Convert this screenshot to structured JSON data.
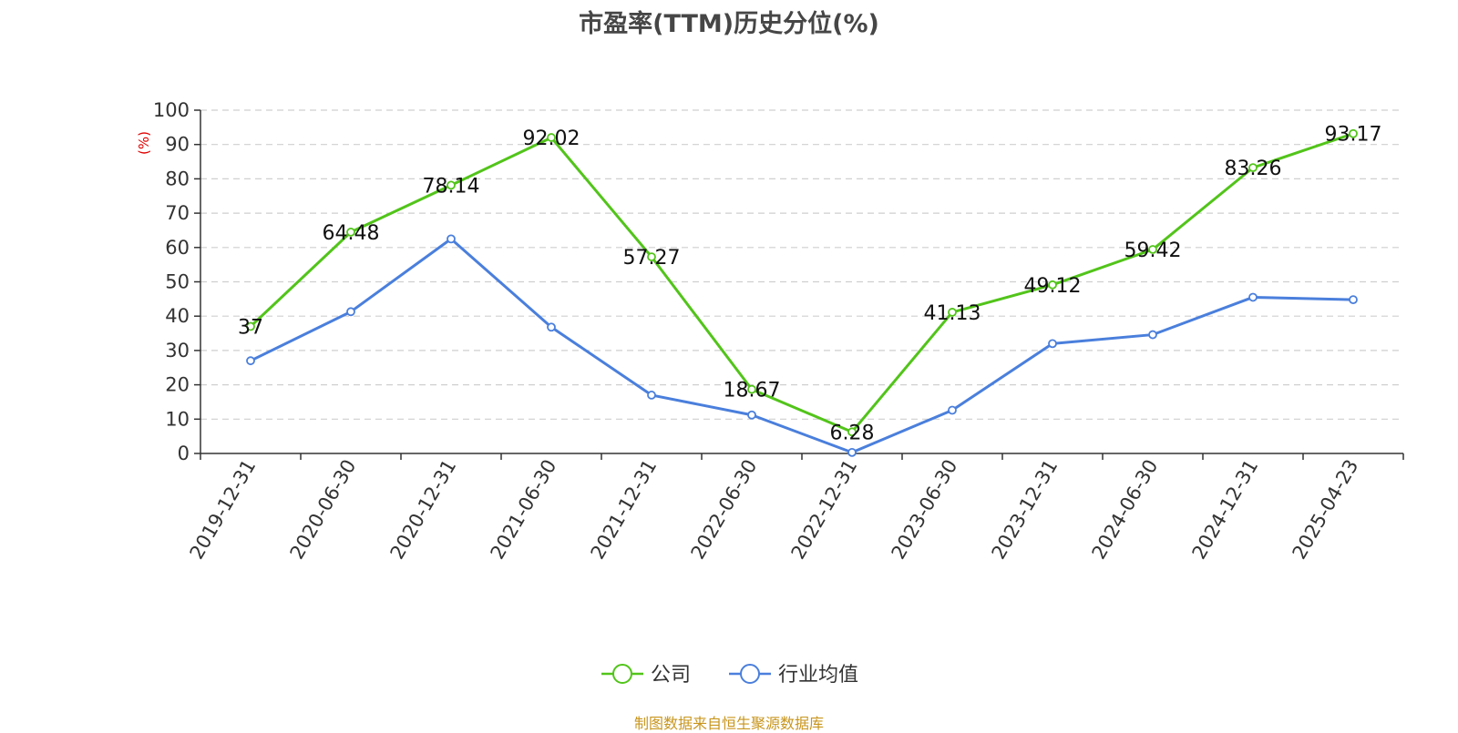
{
  "chart_data": {
    "type": "line",
    "title": "市盈率(TTM)历史分位(%)",
    "ylabel": "(%)",
    "ylim": [
      0,
      100
    ],
    "yticks": [
      0,
      10,
      20,
      30,
      40,
      50,
      60,
      70,
      80,
      90,
      100
    ],
    "grid": true,
    "legend_position": "bottom",
    "categories": [
      "2019-12-31",
      "2020-06-30",
      "2020-12-31",
      "2021-06-30",
      "2021-12-31",
      "2022-06-30",
      "2022-12-31",
      "2023-06-30",
      "2023-12-31",
      "2024-06-30",
      "2024-12-31",
      "2025-04-23"
    ],
    "series": [
      {
        "name": "公司",
        "color": "#52c41a",
        "show_labels": true,
        "values": [
          37,
          64.48,
          78.14,
          92.02,
          57.27,
          18.67,
          6.28,
          41.13,
          49.12,
          59.42,
          83.26,
          93.17
        ],
        "labels": [
          "37",
          "64.48",
          "78.14",
          "92.02",
          "57.27",
          "18.67",
          "6.28",
          "41.13",
          "49.12",
          "59.42",
          "83.26",
          "93.17"
        ]
      },
      {
        "name": "行业均值",
        "color": "#4a7fdc",
        "show_labels": false,
        "values": [
          27,
          41.3,
          62.5,
          36.8,
          17,
          11.2,
          0.3,
          12.6,
          32,
          34.6,
          45.5,
          44.8
        ]
      }
    ]
  },
  "footer": "制图数据来自恒生聚源数据库",
  "colors": {
    "axis_label_color": "#e00000",
    "footer_color": "#c8961e"
  }
}
